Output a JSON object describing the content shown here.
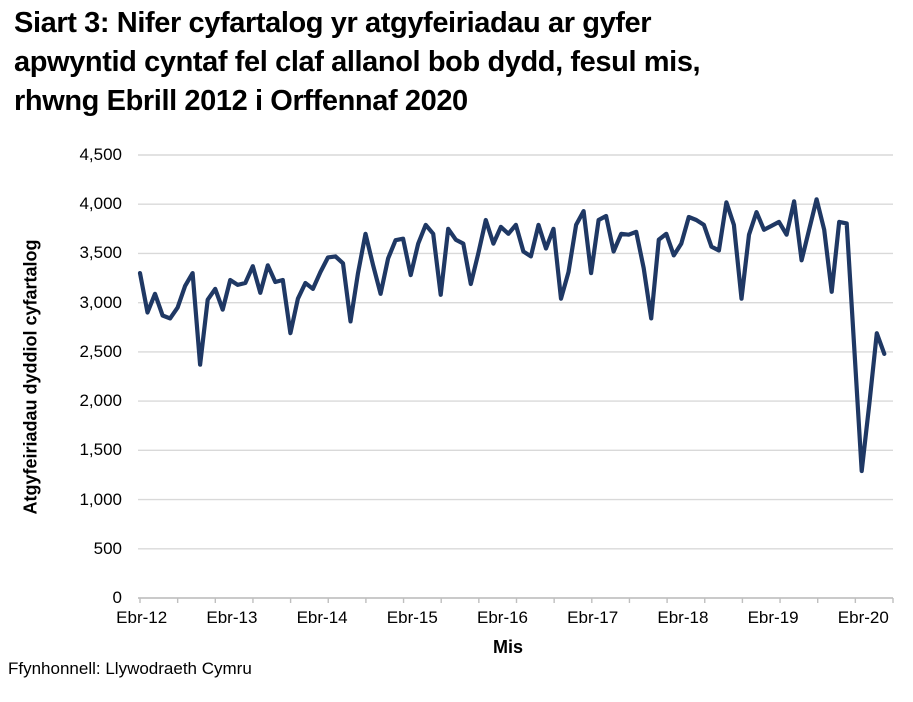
{
  "title_lines": [
    "Siart 3: Nifer cyfartalog yr atgyfeiriadau ar gyfer",
    "apwyntid cyntaf fel claf allanol bob dydd, fesul mis,",
    "rhwng Ebrill 2012 i Orffennaf 2020"
  ],
  "source": "Ffynhonnell: Llywodraeth Cymru",
  "chart_data": {
    "type": "line",
    "title": "Siart 3: Nifer cyfartalog yr atgyfeiriadau ar gyfer apwyntid cyntaf fel claf allanol bob dydd, fesul mis, rhwng Ebrill 2012 i Orffennaf 2020",
    "xlabel": "Mis",
    "ylabel": "Atgyfeiriadau dyddiol cyfartalog",
    "ylim": [
      0,
      4500
    ],
    "y_ticks": [
      0,
      500,
      1000,
      1500,
      2000,
      2500,
      3000,
      3500,
      4000,
      4500
    ],
    "y_tick_labels": [
      "0",
      "500",
      "1,000",
      "1,500",
      "2,000",
      "2,500",
      "3,000",
      "3,500",
      "4,000",
      "4,500"
    ],
    "x_tick_labels": [
      "Ebr-12",
      "Ebr-13",
      "Ebr-14",
      "Ebr-15",
      "Ebr-16",
      "Ebr-17",
      "Ebr-18",
      "Ebr-19",
      "Ebr-20"
    ],
    "grid": "horizontal",
    "legend_position": "none",
    "line_color": "#1F3864",
    "gridline_color": "#D9D9D9",
    "axis_color": "#BFBFBF",
    "series": [
      {
        "name": "Atgyfeiriadau dyddiol cyfartalog",
        "x": [
          "2012-04",
          "2012-05",
          "2012-06",
          "2012-07",
          "2012-08",
          "2012-09",
          "2012-10",
          "2012-11",
          "2012-12",
          "2013-01",
          "2013-02",
          "2013-03",
          "2013-04",
          "2013-05",
          "2013-06",
          "2013-07",
          "2013-08",
          "2013-09",
          "2013-10",
          "2013-11",
          "2013-12",
          "2014-01",
          "2014-02",
          "2014-03",
          "2014-04",
          "2014-05",
          "2014-06",
          "2014-07",
          "2014-08",
          "2014-09",
          "2014-10",
          "2014-11",
          "2014-12",
          "2015-01",
          "2015-02",
          "2015-03",
          "2015-04",
          "2015-05",
          "2015-06",
          "2015-07",
          "2015-08",
          "2015-09",
          "2015-10",
          "2015-11",
          "2015-12",
          "2016-01",
          "2016-02",
          "2016-03",
          "2016-04",
          "2016-05",
          "2016-06",
          "2016-07",
          "2016-08",
          "2016-09",
          "2016-10",
          "2016-11",
          "2016-12",
          "2017-01",
          "2017-02",
          "2017-03",
          "2017-04",
          "2017-05",
          "2017-06",
          "2017-07",
          "2017-08",
          "2017-09",
          "2017-10",
          "2017-11",
          "2017-12",
          "2018-01",
          "2018-02",
          "2018-03",
          "2018-04",
          "2018-05",
          "2018-06",
          "2018-07",
          "2018-08",
          "2018-09",
          "2018-10",
          "2018-11",
          "2018-12",
          "2019-01",
          "2019-02",
          "2019-03",
          "2019-04",
          "2019-05",
          "2019-06",
          "2019-07",
          "2019-08",
          "2019-09",
          "2019-10",
          "2019-11",
          "2019-12",
          "2020-01",
          "2020-02",
          "2020-03",
          "2020-04",
          "2020-05",
          "2020-06",
          "2020-07"
        ],
        "values": [
          3300,
          2900,
          3090,
          2870,
          2840,
          2950,
          3170,
          3300,
          2370,
          3030,
          3140,
          2930,
          3230,
          3180,
          3200,
          3370,
          3100,
          3380,
          3210,
          3230,
          2690,
          3040,
          3200,
          3140,
          3310,
          3460,
          3470,
          3400,
          2810,
          3300,
          3700,
          3380,
          3090,
          3450,
          3635,
          3650,
          3280,
          3600,
          3790,
          3700,
          3080,
          3750,
          3640,
          3600,
          3190,
          3500,
          3840,
          3600,
          3770,
          3700,
          3790,
          3520,
          3470,
          3790,
          3550,
          3750,
          3040,
          3310,
          3790,
          3930,
          3300,
          3840,
          3880,
          3520,
          3700,
          3690,
          3720,
          3350,
          2840,
          3640,
          3700,
          3480,
          3600,
          3870,
          3840,
          3790,
          3570,
          3530,
          4020,
          3790,
          3040,
          3690,
          3920,
          3740,
          3780,
          3820,
          3690,
          4030,
          3430,
          3740,
          4050,
          3740,
          3110,
          3820,
          3805,
          2550,
          1290,
          1970,
          2690,
          2480
        ]
      }
    ]
  }
}
